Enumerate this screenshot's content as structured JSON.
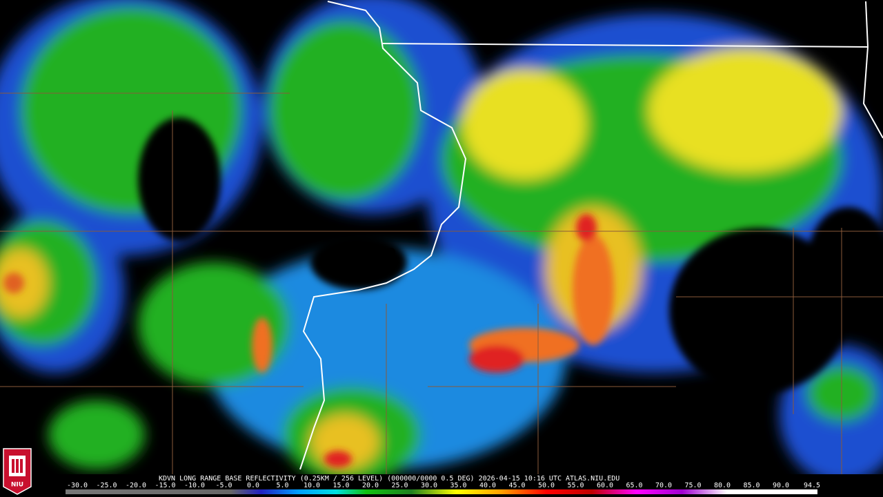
{
  "caption": "KDVN LONG RANGE BASE REFLECTIVITY (0.25KM / 256 LEVEL) (000000/0000 0.5 DEG) 2026-04-15 10:16 UTC  ATLAS.NIU.EDU",
  "logo": "NIU",
  "scale_labels": [
    "-30.0",
    "-25.0",
    "-20.0",
    "-15.0",
    "-10.0",
    "-5.0",
    "0.0",
    "5.0",
    "10.0",
    "15.0",
    "20.0",
    "25.0",
    "30.0",
    "35.0",
    "40.0",
    "45.0",
    "50.0",
    "55.0",
    "60.0",
    "65.0",
    "70.0",
    "75.0",
    "80.0",
    "85.0",
    "90.0",
    "94.5"
  ]
}
